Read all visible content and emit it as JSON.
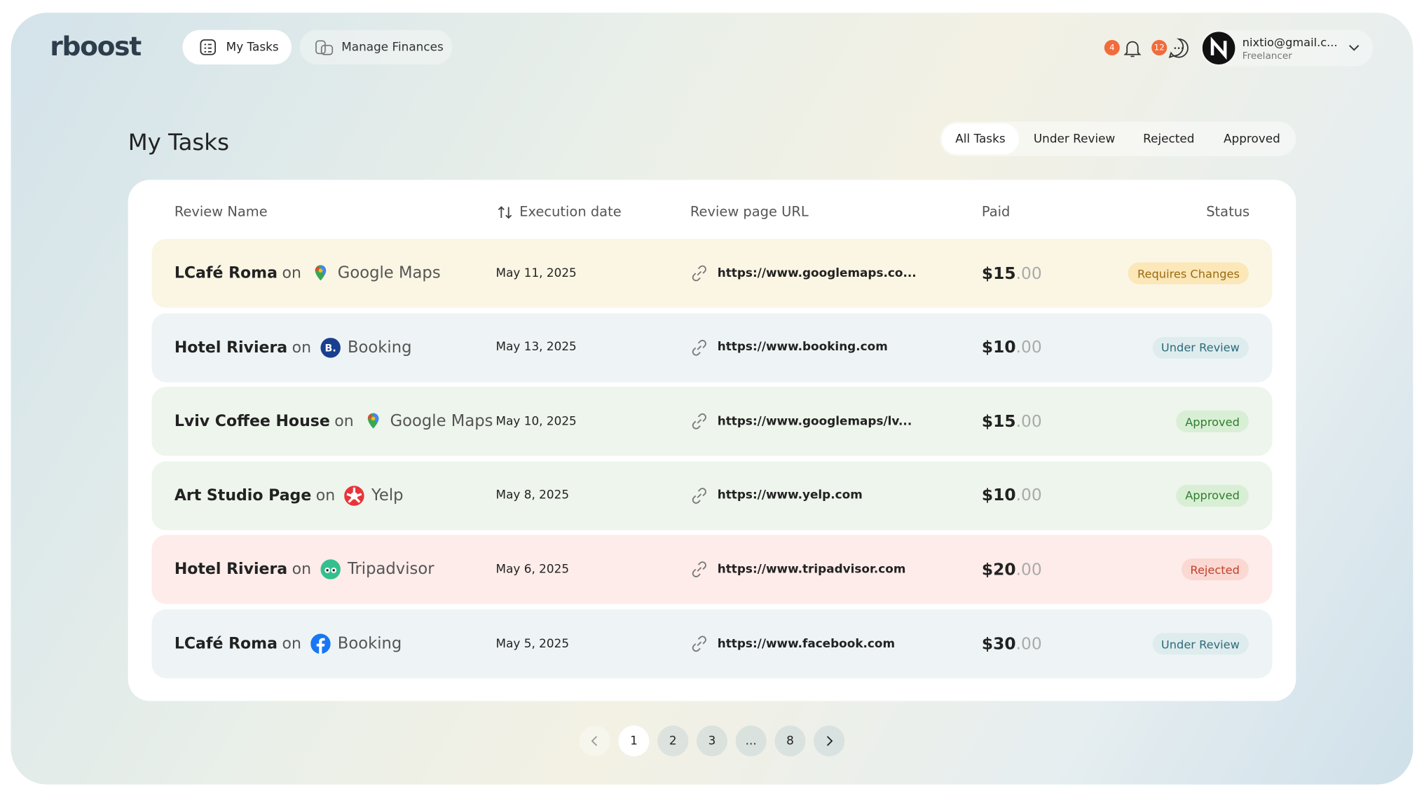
{
  "header": {
    "logo": "rboost",
    "nav": [
      "My Tasks",
      "Manage Finances"
    ],
    "notifications_count": "4",
    "messages_count": "12",
    "user": {
      "email": "nixtio@gmail.c...",
      "role": "Freelancer"
    }
  },
  "page_title": "My Tasks",
  "filters": [
    "All Tasks",
    "Under Review",
    "Rejected",
    "Approved"
  ],
  "table": {
    "headers": [
      "Review Name",
      "Execution date",
      "Review page URL",
      "Paid",
      "Status"
    ],
    "rows": [
      {
        "name": "LCafé Roma",
        "connector": "on",
        "platform": "Google Maps",
        "date": "May 11, 2025",
        "url": "https://www.googlemaps.co...",
        "paid": "$15",
        "cents": ".00",
        "status": "Requires Changes"
      },
      {
        "name": "Hotel Riviera",
        "connector": "on",
        "platform": "Booking",
        "date": "May 13, 2025",
        "url": "https://www.booking.com",
        "paid": "$10",
        "cents": ".00",
        "status": "Under Review"
      },
      {
        "name": "Lviv Coffee House",
        "connector": "on",
        "platform": "Google Maps",
        "date": "May 10, 2025",
        "url": "https://www.googlemaps/lv...",
        "paid": "$15",
        "cents": ".00",
        "status": "Approved"
      },
      {
        "name": "Art Studio Page",
        "connector": "on",
        "platform": "Yelp",
        "date": "May 8, 2025",
        "url": "https://www.yelp.com",
        "paid": "$10",
        "cents": ".00",
        "status": "Approved"
      },
      {
        "name": "Hotel Riviera",
        "connector": "on",
        "platform": "Tripadvisor",
        "date": "May 6, 2025",
        "url": "https://www.tripadvisor.com",
        "paid": "$20",
        "cents": ".00",
        "status": "Rejected"
      },
      {
        "name": "LCafé Roma",
        "connector": "on",
        "platform": "Booking",
        "date": "May 5, 2025",
        "url": "https://www.facebook.com",
        "paid": "$30",
        "cents": ".00",
        "status": "Under Review"
      }
    ]
  },
  "pagination": [
    "1",
    "2",
    "3",
    "...",
    "8"
  ]
}
